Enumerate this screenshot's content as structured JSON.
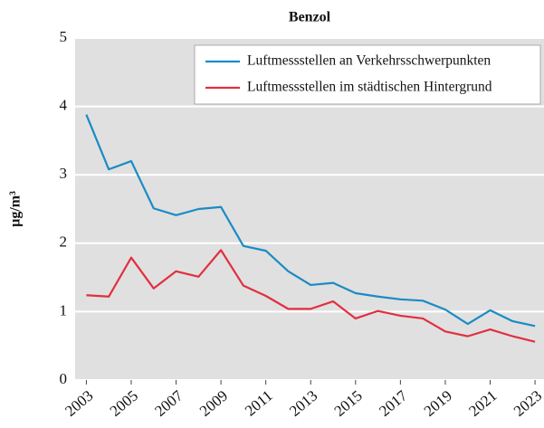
{
  "chart_data": {
    "type": "line",
    "title": "Benzol",
    "y_label": "µg/m³",
    "x": [
      2003,
      2004,
      2005,
      2006,
      2007,
      2008,
      2009,
      2010,
      2011,
      2012,
      2013,
      2014,
      2015,
      2016,
      2017,
      2018,
      2019,
      2020,
      2021,
      2022,
      2023
    ],
    "series": [
      {
        "name": "Luftmessstellen an Verkehrsschwerpunkten",
        "color": "#1a8bc4",
        "values": [
          3.88,
          3.08,
          3.2,
          2.51,
          2.41,
          2.5,
          2.53,
          1.96,
          1.89,
          1.59,
          1.39,
          1.42,
          1.27,
          1.22,
          1.18,
          1.16,
          1.03,
          0.82,
          1.02,
          0.86,
          0.79
        ]
      },
      {
        "name": "Luftmessstellen im städtischen Hintergrund",
        "color": "#e03040",
        "values": [
          1.24,
          1.22,
          1.79,
          1.34,
          1.59,
          1.51,
          1.9,
          1.38,
          1.23,
          1.04,
          1.04,
          1.15,
          0.9,
          1.01,
          0.94,
          0.9,
          0.71,
          0.64,
          0.74,
          0.64,
          0.56
        ]
      }
    ],
    "xlim": [
      2002.5,
      2023.4
    ],
    "xticks": [
      2003,
      2005,
      2007,
      2009,
      2011,
      2013,
      2015,
      2017,
      2019,
      2021,
      2023
    ],
    "ylim": [
      0,
      5
    ],
    "yticks": [
      0,
      1,
      2,
      3,
      4,
      5
    ],
    "grid": true,
    "legend": "upper right"
  }
}
